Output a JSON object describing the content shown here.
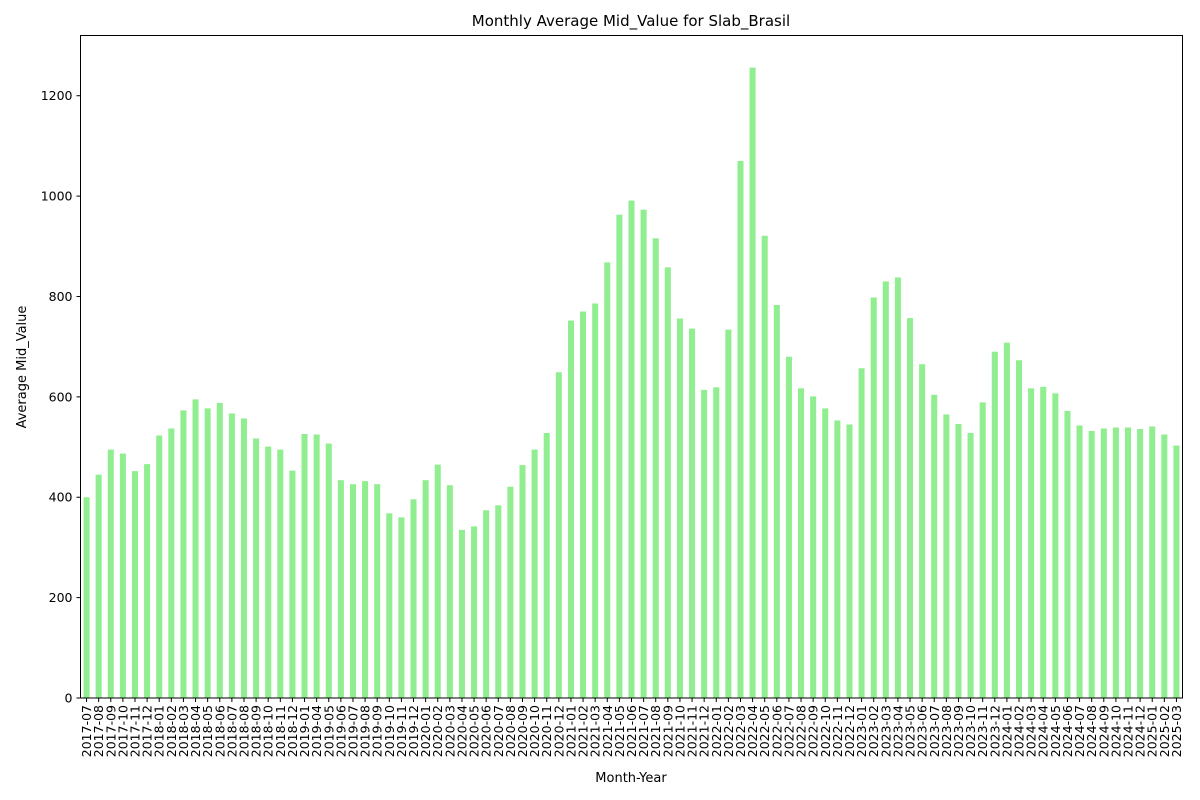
{
  "chart_data": {
    "type": "bar",
    "title": "Monthly Average Mid_Value for Slab_Brasil",
    "xlabel": "Month-Year",
    "ylabel": "Average Mid_Value",
    "ylim": [
      0,
      1320
    ],
    "yticks": [
      0,
      200,
      400,
      600,
      800,
      1000,
      1200
    ],
    "grid": false,
    "bar_color": "#90ee90",
    "categories": [
      "2017-07",
      "2017-08",
      "2017-09",
      "2017-10",
      "2017-11",
      "2017-12",
      "2018-01",
      "2018-02",
      "2018-03",
      "2018-04",
      "2018-05",
      "2018-06",
      "2018-07",
      "2018-08",
      "2018-09",
      "2018-10",
      "2018-11",
      "2018-12",
      "2019-01",
      "2019-04",
      "2019-05",
      "2019-06",
      "2019-07",
      "2019-08",
      "2019-09",
      "2019-10",
      "2019-11",
      "2019-12",
      "2020-01",
      "2020-02",
      "2020-03",
      "2020-04",
      "2020-05",
      "2020-06",
      "2020-07",
      "2020-08",
      "2020-09",
      "2020-10",
      "2020-11",
      "2020-12",
      "2021-01",
      "2021-02",
      "2021-03",
      "2021-04",
      "2021-05",
      "2021-06",
      "2021-07",
      "2021-08",
      "2021-09",
      "2021-10",
      "2021-11",
      "2021-12",
      "2022-01",
      "2022-02",
      "2022-03",
      "2022-04",
      "2022-05",
      "2022-06",
      "2022-07",
      "2022-08",
      "2022-09",
      "2022-10",
      "2022-11",
      "2022-12",
      "2023-01",
      "2023-02",
      "2023-03",
      "2023-04",
      "2023-05",
      "2023-06",
      "2023-07",
      "2023-08",
      "2023-09",
      "2023-10",
      "2023-11",
      "2023-12",
      "2024-01",
      "2024-02",
      "2024-03",
      "2024-04",
      "2024-05",
      "2024-06",
      "2024-07",
      "2024-08",
      "2024-09",
      "2024-10",
      "2024-11",
      "2024-12",
      "2025-01",
      "2025-02",
      "2025-03"
    ],
    "values": [
      400,
      445,
      495,
      487,
      452,
      466,
      523,
      537,
      573,
      595,
      577,
      588,
      567,
      557,
      517,
      501,
      495,
      453,
      526,
      525,
      507,
      434,
      426,
      432,
      426,
      368,
      360,
      396,
      434,
      465,
      424,
      335,
      342,
      374,
      384,
      421,
      464,
      495,
      528,
      649,
      752,
      770,
      786,
      868,
      963,
      991,
      973,
      916,
      858,
      756,
      736,
      614,
      619,
      734,
      1070,
      1256,
      921,
      783,
      680,
      617,
      601,
      577,
      553,
      545,
      657,
      798,
      830,
      838,
      757,
      665,
      604,
      565,
      546,
      528,
      589,
      690,
      708,
      673,
      617,
      620,
      607,
      572,
      543,
      532,
      537,
      539,
      539,
      536,
      541,
      525,
      503
    ]
  }
}
